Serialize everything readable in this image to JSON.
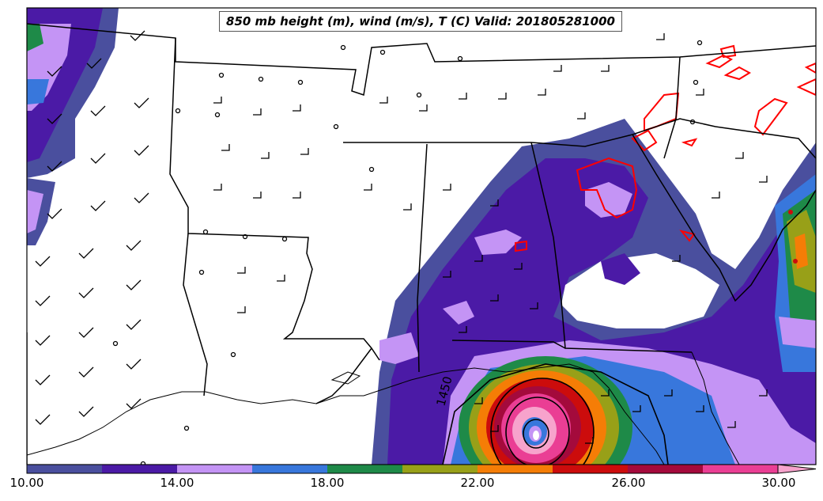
{
  "title": "850 mb height (m), wind (m/s), T (C) Valid: 201805281000",
  "contour_label": "1450",
  "colorbar": {
    "tick_labels": [
      "10.00",
      "14.00",
      "18.00",
      "22.00",
      "26.00",
      "30.00"
    ],
    "colors": [
      "#4a4f9e",
      "#4b1aa6",
      "#c494f5",
      "#3877dc",
      "#1e8a48",
      "#98a018",
      "#f57d06",
      "#cc0c0c",
      "#a40a3c",
      "#ea3e94",
      "#f7a3cc"
    ]
  },
  "colors": {
    "land": "#ffffff",
    "boundary": "#000000",
    "temperature_contour": "#ff0000",
    "height_contour": "#000000"
  }
}
